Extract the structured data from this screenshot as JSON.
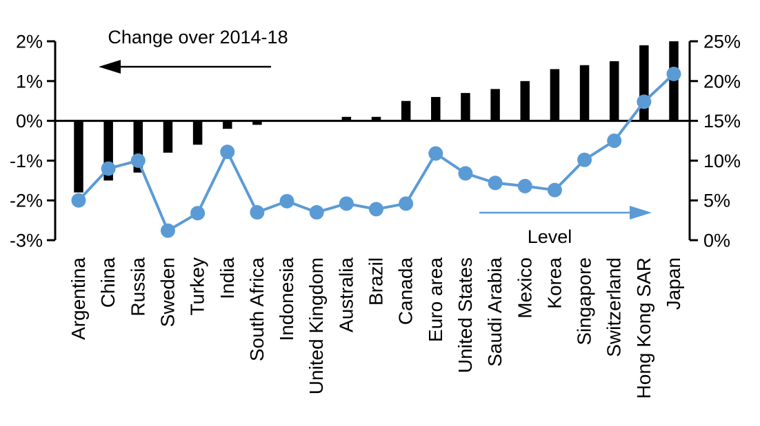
{
  "chart_data": {
    "type": "combo",
    "categories": [
      "Argentina",
      "China",
      "Russia",
      "Sweden",
      "Turkey",
      "India",
      "South Africa",
      "Indonesia",
      "United Kingdom",
      "Australia",
      "Brazil",
      "Canada",
      "Euro area",
      "United States",
      "Saudi Arabia",
      "Mexico",
      "Korea",
      "Singapore",
      "Switzerland",
      "Hong Kong SAR",
      "Japan"
    ],
    "series": [
      {
        "name": "Change over 2014-18",
        "type": "bar",
        "axis": "left",
        "color": "#000000",
        "values": [
          -1.8,
          -1.5,
          -1.3,
          -0.8,
          -0.6,
          -0.2,
          -0.1,
          0,
          0,
          0.1,
          0.1,
          0.5,
          0.6,
          0.7,
          0.8,
          1.0,
          1.3,
          1.4,
          1.5,
          1.9,
          2.0
        ]
      },
      {
        "name": "Level",
        "type": "line",
        "axis": "right",
        "color": "#5B9BD5",
        "values": [
          5.0,
          9.0,
          10.0,
          1.2,
          3.4,
          11.1,
          3.5,
          4.9,
          3.5,
          4.6,
          3.9,
          4.6,
          10.9,
          8.4,
          7.2,
          6.8,
          6.3,
          10.1,
          12.5,
          17.4,
          20.9
        ]
      }
    ],
    "left_axis": {
      "min": -3,
      "max": 2,
      "tick_labels": [
        "2%",
        "1%",
        "0%",
        "-1%",
        "-2%",
        "-3%"
      ],
      "tick_values": [
        2,
        1,
        0,
        -1,
        -2,
        -3
      ]
    },
    "right_axis": {
      "min": 0,
      "max": 25,
      "tick_labels": [
        "25%",
        "20%",
        "15%",
        "10%",
        "5%",
        "0%"
      ],
      "tick_values": [
        25,
        20,
        15,
        10,
        5,
        0
      ]
    },
    "annotations": [
      {
        "text": "Change over 2014-18",
        "arrow_direction": "left",
        "color": "#000000"
      },
      {
        "text": "Level",
        "arrow_direction": "right",
        "color": "#5B9BD5"
      }
    ],
    "grid": false,
    "baseline_left_value": 0
  }
}
